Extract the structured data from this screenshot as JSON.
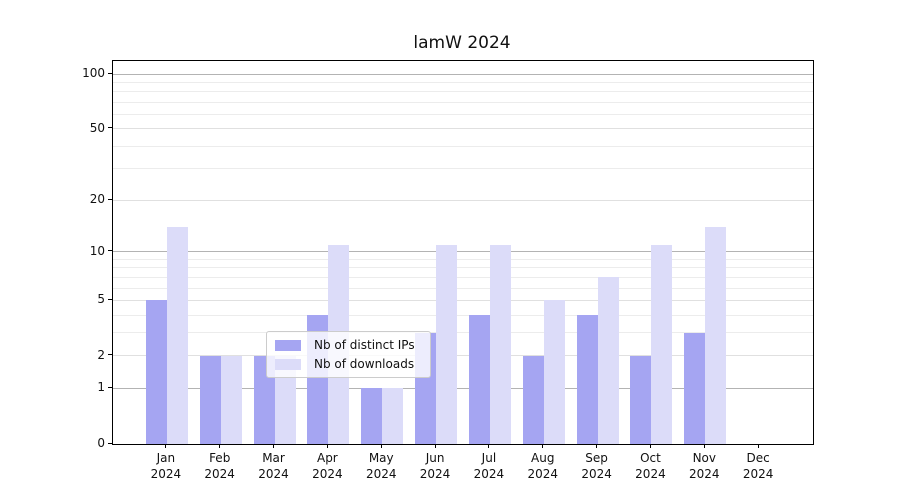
{
  "title": "lamW 2024",
  "colors": {
    "ips_bar": "#a5a5f2",
    "downloads_bar": "#dcdcf9",
    "decade_grid": "#b3b3b3",
    "grid": "#e0e0e0",
    "minor_grid": "#ececec",
    "spine": "#000000",
    "legend_border": "#cccccc"
  },
  "y_axis": {
    "tick_labels": [
      "0",
      "1",
      "2",
      "5",
      "10",
      "20",
      "50",
      "100"
    ],
    "tick_values": [
      0,
      1,
      2,
      5,
      10,
      20,
      50,
      100
    ],
    "decade_values": [
      1,
      10,
      100
    ],
    "mid_values": [
      2,
      5,
      20,
      50
    ],
    "minor_values": [
      3,
      4,
      6,
      7,
      8,
      9,
      30,
      40,
      60,
      70,
      80,
      90
    ],
    "max_value": 118
  },
  "x_axis": {
    "months": [
      "Jan",
      "Feb",
      "Mar",
      "Apr",
      "May",
      "Jun",
      "Jul",
      "Aug",
      "Sep",
      "Oct",
      "Nov",
      "Dec"
    ],
    "year": "2024"
  },
  "legend": {
    "items": [
      {
        "label": "Nb of distinct IPs",
        "color_key": "ips_bar"
      },
      {
        "label": "Nb of downloads",
        "color_key": "downloads_bar"
      }
    ]
  },
  "chart_data": {
    "type": "bar",
    "title": "lamW 2024",
    "categories": [
      "Jan 2024",
      "Feb 2024",
      "Mar 2024",
      "Apr 2024",
      "May 2024",
      "Jun 2024",
      "Jul 2024",
      "Aug 2024",
      "Sep 2024",
      "Oct 2024",
      "Nov 2024",
      "Dec 2024"
    ],
    "series": [
      {
        "name": "Nb of distinct IPs",
        "values": [
          5,
          2,
          2,
          4,
          1,
          3,
          4,
          2,
          4,
          2,
          3,
          0
        ]
      },
      {
        "name": "Nb of downloads",
        "values": [
          14,
          2,
          2,
          11,
          1,
          11,
          11,
          5,
          7,
          11,
          14,
          0
        ]
      }
    ],
    "yscale": "log1p",
    "y_ticks": [
      0,
      1,
      2,
      5,
      10,
      20,
      50,
      100
    ],
    "ylim": [
      0,
      118
    ],
    "xlabel": "",
    "ylabel": "",
    "grid": true,
    "legend_position": "lower center"
  }
}
